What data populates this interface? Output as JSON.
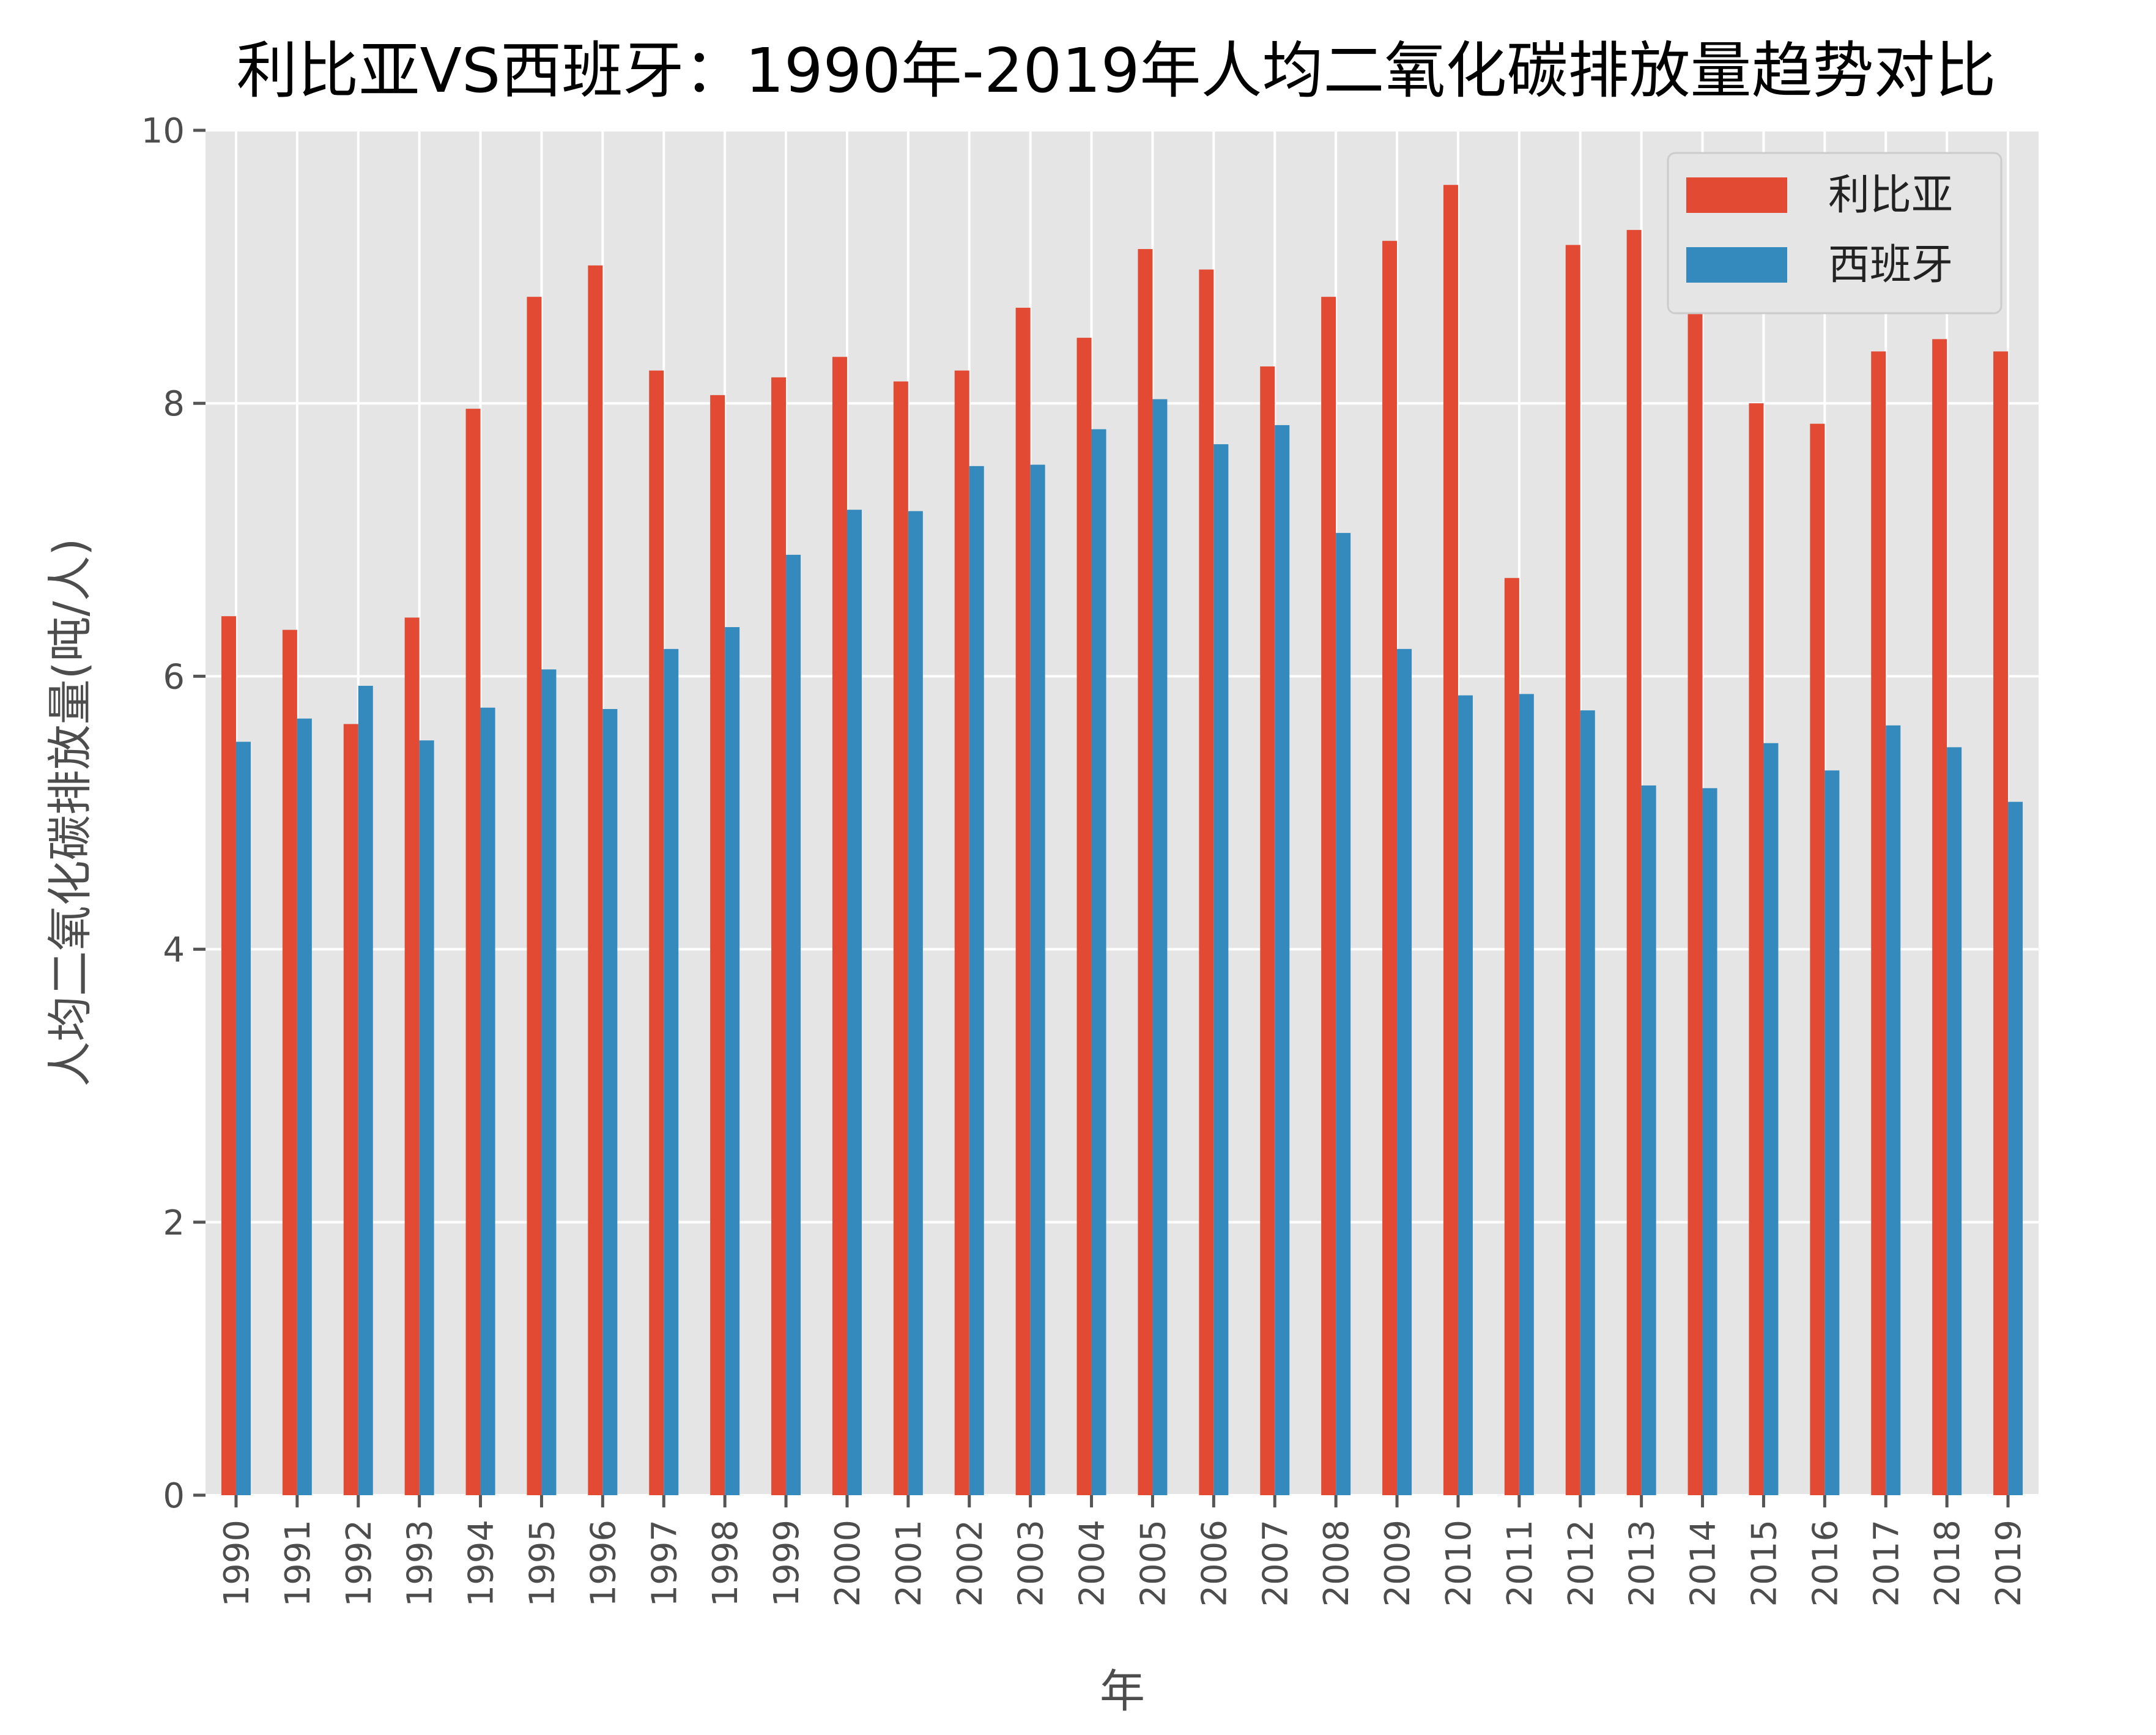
{
  "chart_data": {
    "type": "bar",
    "title": "利比亚VS西班牙：1990年-2019年人均二氧化碳排放量趋势对比",
    "xlabel": "年",
    "ylabel": "人均二氧化碳排放量(吨/人)",
    "ylim": [
      0,
      10
    ],
    "yticks": [
      0,
      2,
      4,
      6,
      8,
      10
    ],
    "grid": true,
    "legend_position": "top-right",
    "categories": [
      "1990",
      "1991",
      "1992",
      "1993",
      "1994",
      "1995",
      "1996",
      "1997",
      "1998",
      "1999",
      "2000",
      "2001",
      "2002",
      "2003",
      "2004",
      "2005",
      "2006",
      "2007",
      "2008",
      "2009",
      "2010",
      "2011",
      "2012",
      "2013",
      "2014",
      "2015",
      "2016",
      "2017",
      "2018",
      "2019"
    ],
    "series": [
      {
        "name": "利比亚",
        "color": "#E24A33",
        "values": [
          6.44,
          6.34,
          5.65,
          6.43,
          7.96,
          8.78,
          9.01,
          8.24,
          8.06,
          8.19,
          8.34,
          8.16,
          8.24,
          8.7,
          8.48,
          9.13,
          8.98,
          8.27,
          8.78,
          9.19,
          9.6,
          6.72,
          9.16,
          9.27,
          9.1,
          8.0,
          7.85,
          8.38,
          8.47,
          8.38
        ]
      },
      {
        "name": "西班牙",
        "color": "#348ABD",
        "values": [
          5.52,
          5.69,
          5.93,
          5.53,
          5.77,
          6.05,
          5.76,
          6.2,
          6.36,
          6.89,
          7.22,
          7.21,
          7.54,
          7.55,
          7.81,
          8.03,
          7.7,
          7.84,
          7.05,
          6.2,
          5.86,
          5.87,
          5.75,
          5.2,
          5.18,
          5.51,
          5.31,
          5.64,
          5.48,
          5.08
        ]
      }
    ]
  },
  "colors": {
    "plot_background": "#E5E5E5",
    "grid": "#FFFFFF",
    "legend_background": "#E5E5E5",
    "legend_border": "#CCCCCC"
  }
}
